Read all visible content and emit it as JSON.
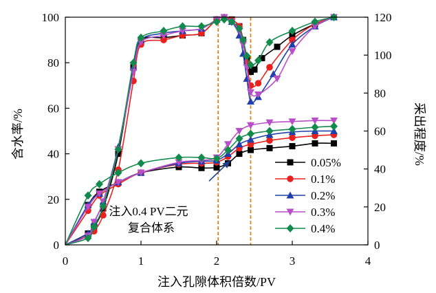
{
  "chart_data": {
    "type": "line",
    "xlabel": "注入孔隙体积倍数/PV",
    "ylabel_left": "含水率/%",
    "ylabel_right": "采出程度/%",
    "xlim": [
      0,
      4
    ],
    "ylim_left": [
      0,
      100
    ],
    "ylim_right": [
      0,
      120
    ],
    "x_ticks": [
      "0",
      "1",
      "2",
      "3",
      "4"
    ],
    "y_left_ticks": [
      "0",
      "20",
      "40",
      "60",
      "80",
      "100"
    ],
    "y_right_ticks": [
      "0",
      "20",
      "40",
      "60",
      "80",
      "100",
      "120"
    ],
    "vlines": [
      2.02,
      2.45
    ],
    "vline_color": "#e07b00",
    "legend_position": "lower-right",
    "annotation": {
      "lines": [
        "注入0.4 PV二元",
        "复合体系"
      ],
      "arrow_from": [
        1.9,
        28
      ],
      "arrow_to": [
        2.18,
        37
      ]
    },
    "series": [
      {
        "name": "0.05%",
        "color": "#000000",
        "marker": "square",
        "water_cut": {
          "x": [
            0,
            0.3,
            0.38,
            0.5,
            0.7,
            0.9,
            1.0,
            1.3,
            1.55,
            1.8,
            2.0,
            2.1,
            2.2,
            2.3,
            2.35,
            2.4,
            2.45,
            2.5,
            2.6,
            2.8,
            3.0,
            3.3,
            3.55
          ],
          "y": [
            0,
            5,
            8,
            16,
            40,
            78,
            90,
            91,
            92,
            93,
            99,
            100,
            99,
            96,
            90,
            82,
            76,
            77,
            82,
            87,
            92,
            97,
            100
          ]
        },
        "recovery": {
          "x": [
            0,
            0.3,
            0.45,
            0.7,
            1.0,
            1.5,
            1.8,
            2.0,
            2.15,
            2.3,
            2.45,
            2.7,
            3.0,
            3.3,
            3.55
          ],
          "y": [
            0,
            21,
            28,
            33,
            38,
            41,
            40.5,
            40.8,
            43,
            48,
            50,
            51,
            52,
            53.5,
            53.5
          ]
        }
      },
      {
        "name": "0.1%",
        "color": "#e8211e",
        "marker": "circle",
        "water_cut": {
          "x": [
            0,
            0.3,
            0.38,
            0.5,
            0.7,
            0.9,
            1.0,
            1.3,
            1.55,
            1.8,
            2.0,
            2.1,
            2.2,
            2.3,
            2.35,
            2.4,
            2.45,
            2.55,
            2.7,
            3.0,
            3.3,
            3.55
          ],
          "y": [
            0,
            4,
            6,
            13,
            33,
            72,
            88,
            90,
            92,
            93,
            99,
            100,
            99,
            96,
            90,
            80,
            70,
            71,
            78,
            90,
            97,
            100
          ]
        },
        "recovery": {
          "x": [
            0,
            0.3,
            0.45,
            0.7,
            1.0,
            1.5,
            1.8,
            2.0,
            2.15,
            2.3,
            2.45,
            2.7,
            3.0,
            3.3,
            3.55
          ],
          "y": [
            0,
            18,
            26,
            32,
            38,
            42.5,
            43,
            43.5,
            46.5,
            51,
            53,
            55,
            56.5,
            57.5,
            58
          ]
        }
      },
      {
        "name": "0.2%",
        "color": "#1f3faa",
        "marker": "triangle-up",
        "water_cut": {
          "x": [
            0,
            0.3,
            0.38,
            0.5,
            0.7,
            0.9,
            1.0,
            1.3,
            1.55,
            1.8,
            2.0,
            2.1,
            2.2,
            2.3,
            2.35,
            2.4,
            2.45,
            2.55,
            2.75,
            3.0,
            3.3,
            3.55
          ],
          "y": [
            0,
            5,
            10,
            19,
            43,
            78,
            90,
            93,
            94,
            95,
            99,
            100,
            98,
            92,
            84,
            73,
            63,
            65,
            75,
            88,
            96,
            100
          ]
        },
        "recovery": {
          "x": [
            0,
            0.3,
            0.45,
            0.7,
            1.0,
            1.5,
            1.8,
            2.0,
            2.15,
            2.3,
            2.45,
            2.7,
            3.0,
            3.3,
            3.55
          ],
          "y": [
            0,
            21,
            27,
            33,
            38,
            43,
            44,
            44.5,
            48,
            53,
            55.5,
            58,
            59.5,
            60,
            60
          ]
        }
      },
      {
        "name": "0.3%",
        "color": "#b84fc8",
        "marker": "triangle-down",
        "water_cut": {
          "x": [
            0,
            0.3,
            0.38,
            0.5,
            0.7,
            0.9,
            1.0,
            1.3,
            1.55,
            1.8,
            2.0,
            2.1,
            2.2,
            2.3,
            2.35,
            2.4,
            2.45,
            2.55,
            2.8,
            3.0,
            3.3,
            3.55
          ],
          "y": [
            0,
            4,
            10,
            19,
            42,
            76,
            89,
            92,
            94,
            95,
            99,
            100,
            98,
            94,
            88,
            78,
            67,
            66,
            73,
            85,
            96,
            100
          ]
        },
        "recovery": {
          "x": [
            0,
            0.3,
            0.45,
            0.7,
            1.0,
            1.5,
            1.8,
            2.0,
            2.15,
            2.3,
            2.45,
            2.7,
            3.0,
            3.3,
            3.55
          ],
          "y": [
            0,
            20,
            27,
            33,
            38,
            43.5,
            44.5,
            46,
            53,
            60,
            63,
            64.5,
            65,
            65.5,
            65.5
          ]
        }
      },
      {
        "name": "0.4%",
        "color": "#138a4d",
        "marker": "diamond",
        "water_cut": {
          "x": [
            0,
            0.3,
            0.38,
            0.5,
            0.7,
            0.9,
            1.0,
            1.3,
            1.55,
            1.8,
            2.0,
            2.1,
            2.2,
            2.3,
            2.35,
            2.4,
            2.45,
            2.55,
            2.7,
            3.0,
            3.3,
            3.55
          ],
          "y": [
            0,
            3,
            8,
            17,
            42,
            80,
            91,
            94,
            96,
            96,
            98,
            99,
            98,
            95,
            90,
            83,
            79,
            81,
            89,
            94,
            98,
            100
          ]
        },
        "recovery": {
          "x": [
            0,
            0.3,
            0.45,
            0.7,
            1.0,
            1.5,
            1.8,
            2.0,
            2.15,
            2.3,
            2.45,
            2.7,
            3.0,
            3.3,
            3.55
          ],
          "y": [
            0,
            26,
            32,
            38,
            43,
            46,
            46,
            45.5,
            50,
            56,
            58.5,
            60,
            61,
            62,
            62.5
          ]
        }
      }
    ]
  }
}
